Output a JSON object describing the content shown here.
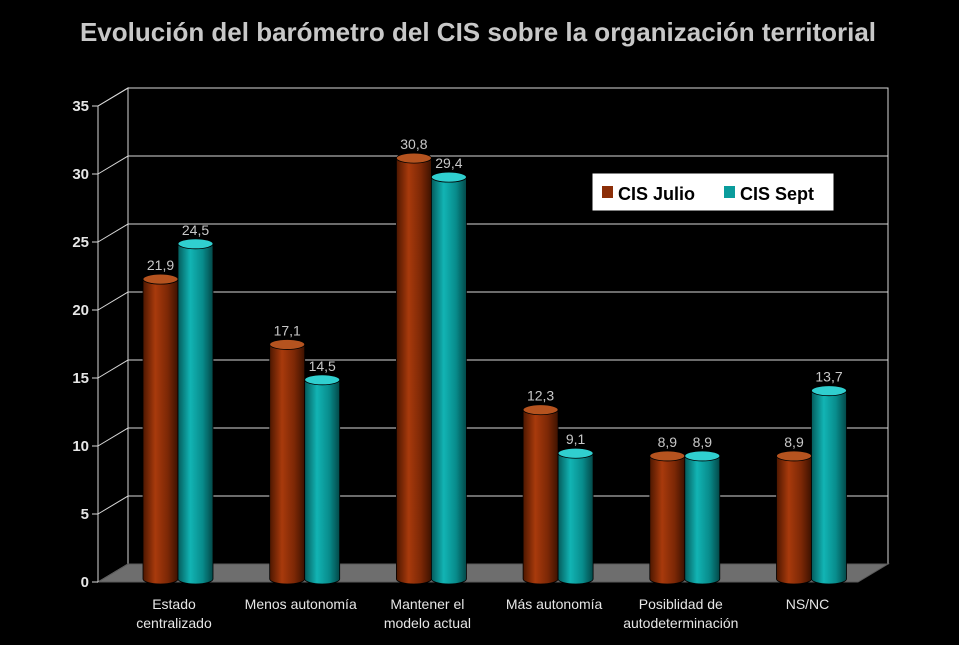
{
  "chart_data": {
    "type": "bar",
    "title": "Evolución del barómetro del CIS sobre la organización territorial",
    "categories": [
      [
        "Estado",
        "centralizado"
      ],
      [
        "Menos autonomía"
      ],
      [
        "Mantener el",
        "modelo actual"
      ],
      [
        "Más autonomía"
      ],
      [
        "Posiblidad de",
        "autodeterminación"
      ],
      [
        "NS/NC"
      ]
    ],
    "series": [
      {
        "name": "CIS Julio",
        "color": "#8b2e08",
        "values": [
          21.9,
          17.1,
          30.8,
          12.3,
          8.9,
          8.9
        ],
        "labels": [
          "21,9",
          "17,1",
          "30,8",
          "12,3",
          "8,9",
          "8,9"
        ]
      },
      {
        "name": "CIS Sept",
        "color": "#0a9c9c",
        "values": [
          24.5,
          14.5,
          29.4,
          9.1,
          8.9,
          13.7
        ],
        "labels": [
          "24,5",
          "14,5",
          "29,4",
          "9,1",
          "8,9",
          "13,7"
        ]
      }
    ],
    "ylim": [
      0,
      35
    ],
    "yticks": [
      0,
      5,
      10,
      15,
      20,
      25,
      30,
      35
    ],
    "grid": true,
    "legend": "top-right"
  }
}
